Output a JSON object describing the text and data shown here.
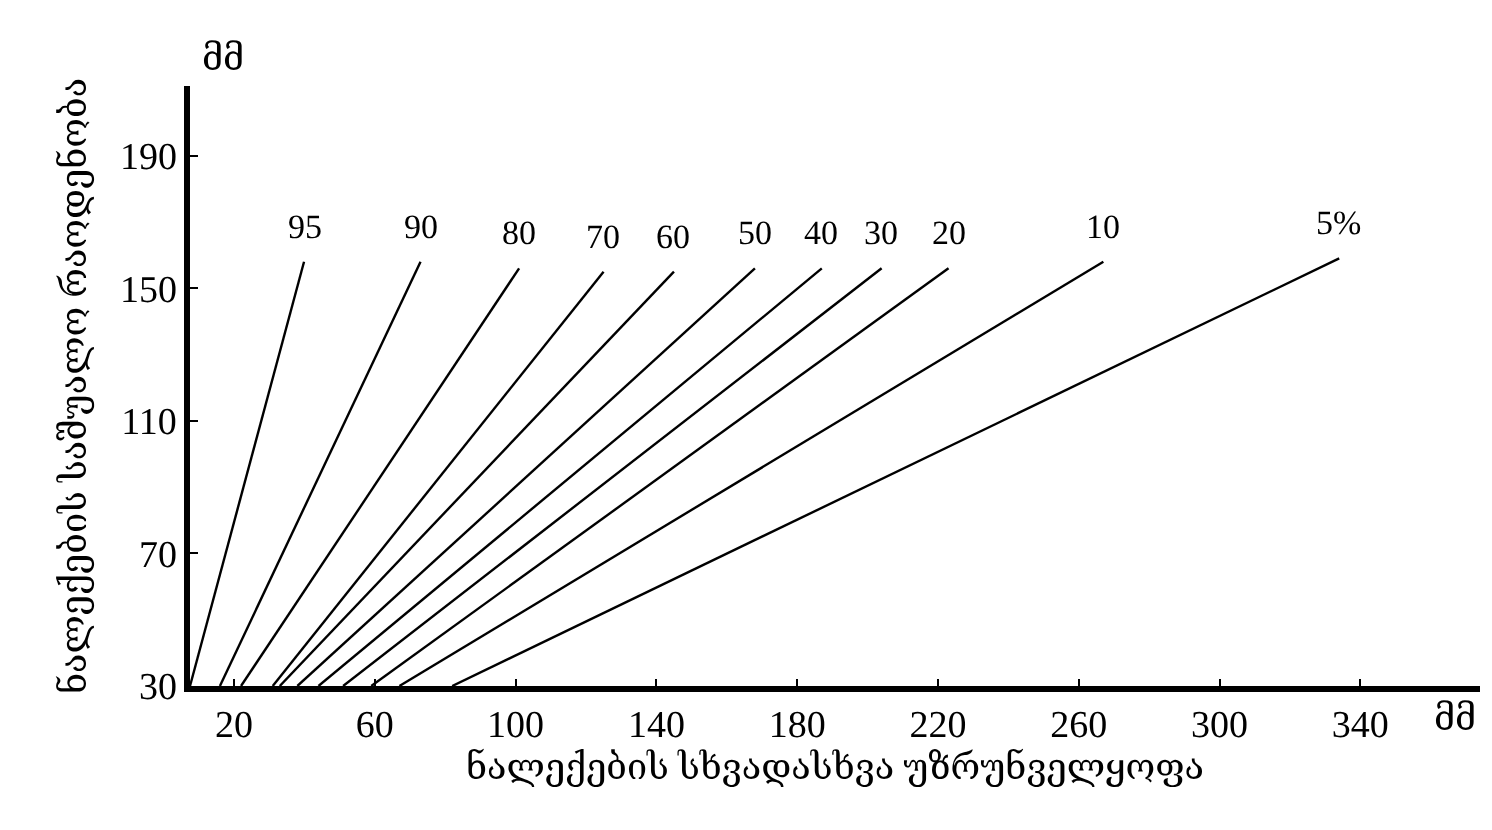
{
  "chart_data": {
    "type": "line",
    "xlabel": "ნალექების სხვადასხვა უზრუნველყოფა",
    "ylabel": "ნალექების საშუალო რაოდენობა",
    "annotations": [
      "მმ",
      "მმ"
    ],
    "xlim": [
      7.5,
      374
    ],
    "ylim": [
      30,
      211
    ],
    "xticks": [
      20,
      60,
      100,
      140,
      180,
      220,
      260,
      300,
      340
    ],
    "yticks": [
      30,
      70,
      110,
      150,
      190
    ],
    "legend": false,
    "marker": "none",
    "line_style": "solid",
    "series": [
      {
        "name": "95",
        "color": "#000000",
        "x": [
          7.5,
          39.9
        ],
        "values": [
          30,
          158
        ]
      },
      {
        "name": "90",
        "color": "#000000",
        "x": [
          16,
          73
        ],
        "values": [
          30,
          158
        ]
      },
      {
        "name": "80",
        "color": "#000000",
        "x": [
          22,
          101
        ],
        "values": [
          30,
          156
        ]
      },
      {
        "name": "70",
        "color": "#000000",
        "x": [
          31,
          125
        ],
        "values": [
          30,
          155
        ]
      },
      {
        "name": "60",
        "color": "#000000",
        "x": [
          33,
          145
        ],
        "values": [
          30,
          155
        ]
      },
      {
        "name": "50",
        "color": "#000000",
        "x": [
          38,
          168
        ],
        "values": [
          30,
          156
        ]
      },
      {
        "name": "40",
        "color": "#000000",
        "x": [
          44,
          187
        ],
        "values": [
          30,
          156
        ]
      },
      {
        "name": "30",
        "color": "#000000",
        "x": [
          51,
          204
        ],
        "values": [
          30,
          156
        ]
      },
      {
        "name": "20",
        "color": "#000000",
        "x": [
          59,
          223
        ],
        "values": [
          30,
          156
        ]
      },
      {
        "name": "10",
        "color": "#000000",
        "x": [
          67,
          267
        ],
        "values": [
          30,
          158
        ]
      },
      {
        "name": "5%",
        "color": "#000000",
        "x": [
          82,
          334
        ],
        "values": [
          30,
          159
        ]
      }
    ]
  }
}
